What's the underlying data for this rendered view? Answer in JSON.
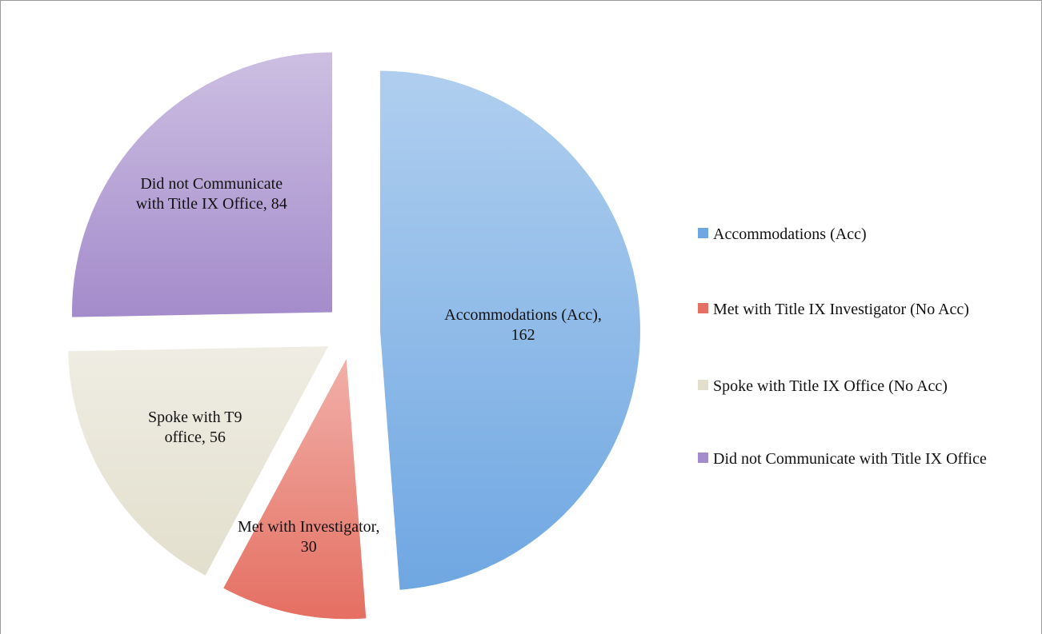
{
  "chart_data": {
    "type": "pie",
    "categories": [
      "Accommodations (Acc)",
      "Met with Title IX Investigator (No Acc)",
      "Spoke with Title IX Office (No Acc)",
      "Did not Communicate with Title IX Office"
    ],
    "values": [
      162,
      30,
      56,
      84
    ],
    "value_labels": [
      "Accommodations (Acc), 162",
      "Met with Investigator, 30",
      "Spoke with T9 office, 56",
      "Did not Communicate with Title IX Office, 84"
    ],
    "colors": [
      "#6fa7e2",
      "#e56f62",
      "#e2dfcd",
      "#a48bcb"
    ],
    "legend": "right"
  }
}
